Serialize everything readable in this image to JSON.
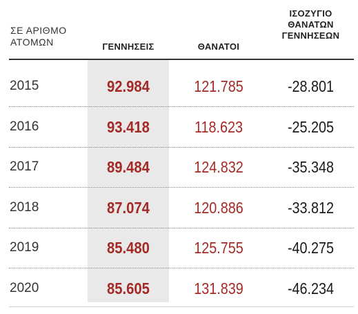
{
  "chart_data": {
    "type": "table",
    "unit_label": [
      "ΣΕ ΑΡΙΘΜΟ",
      "ΑΤΟΜΩΝ"
    ],
    "columns": {
      "births": [
        "ΓΕΝΝΗΣΕΙΣ"
      ],
      "deaths": [
        "ΘΑΝΑΤΟΙ"
      ],
      "balance": [
        "ΙΣΟΖΥΓΙΟ",
        "ΘΑΝΑΤΩΝ",
        "ΓΕΝΝΗΣΕΩΝ"
      ]
    },
    "rows": [
      {
        "year": "2015",
        "births": "92.984",
        "deaths": "121.785",
        "balance": "-28.801"
      },
      {
        "year": "2016",
        "births": "93.418",
        "deaths": "118.623",
        "balance": "-25.205"
      },
      {
        "year": "2017",
        "births": "89.484",
        "deaths": "124.832",
        "balance": "-35.348"
      },
      {
        "year": "2018",
        "births": "87.074",
        "deaths": "120.886",
        "balance": "-33.812"
      },
      {
        "year": "2019",
        "births": "85.480",
        "deaths": "125.755",
        "balance": "-40.275"
      },
      {
        "year": "2020",
        "births": "85.605",
        "deaths": "131.839",
        "balance": "-46.234"
      }
    ]
  },
  "colors": {
    "accent_red": "#a42a26",
    "highlight_bg": "#e9e9e9",
    "text_dark": "#1a1a1a"
  }
}
